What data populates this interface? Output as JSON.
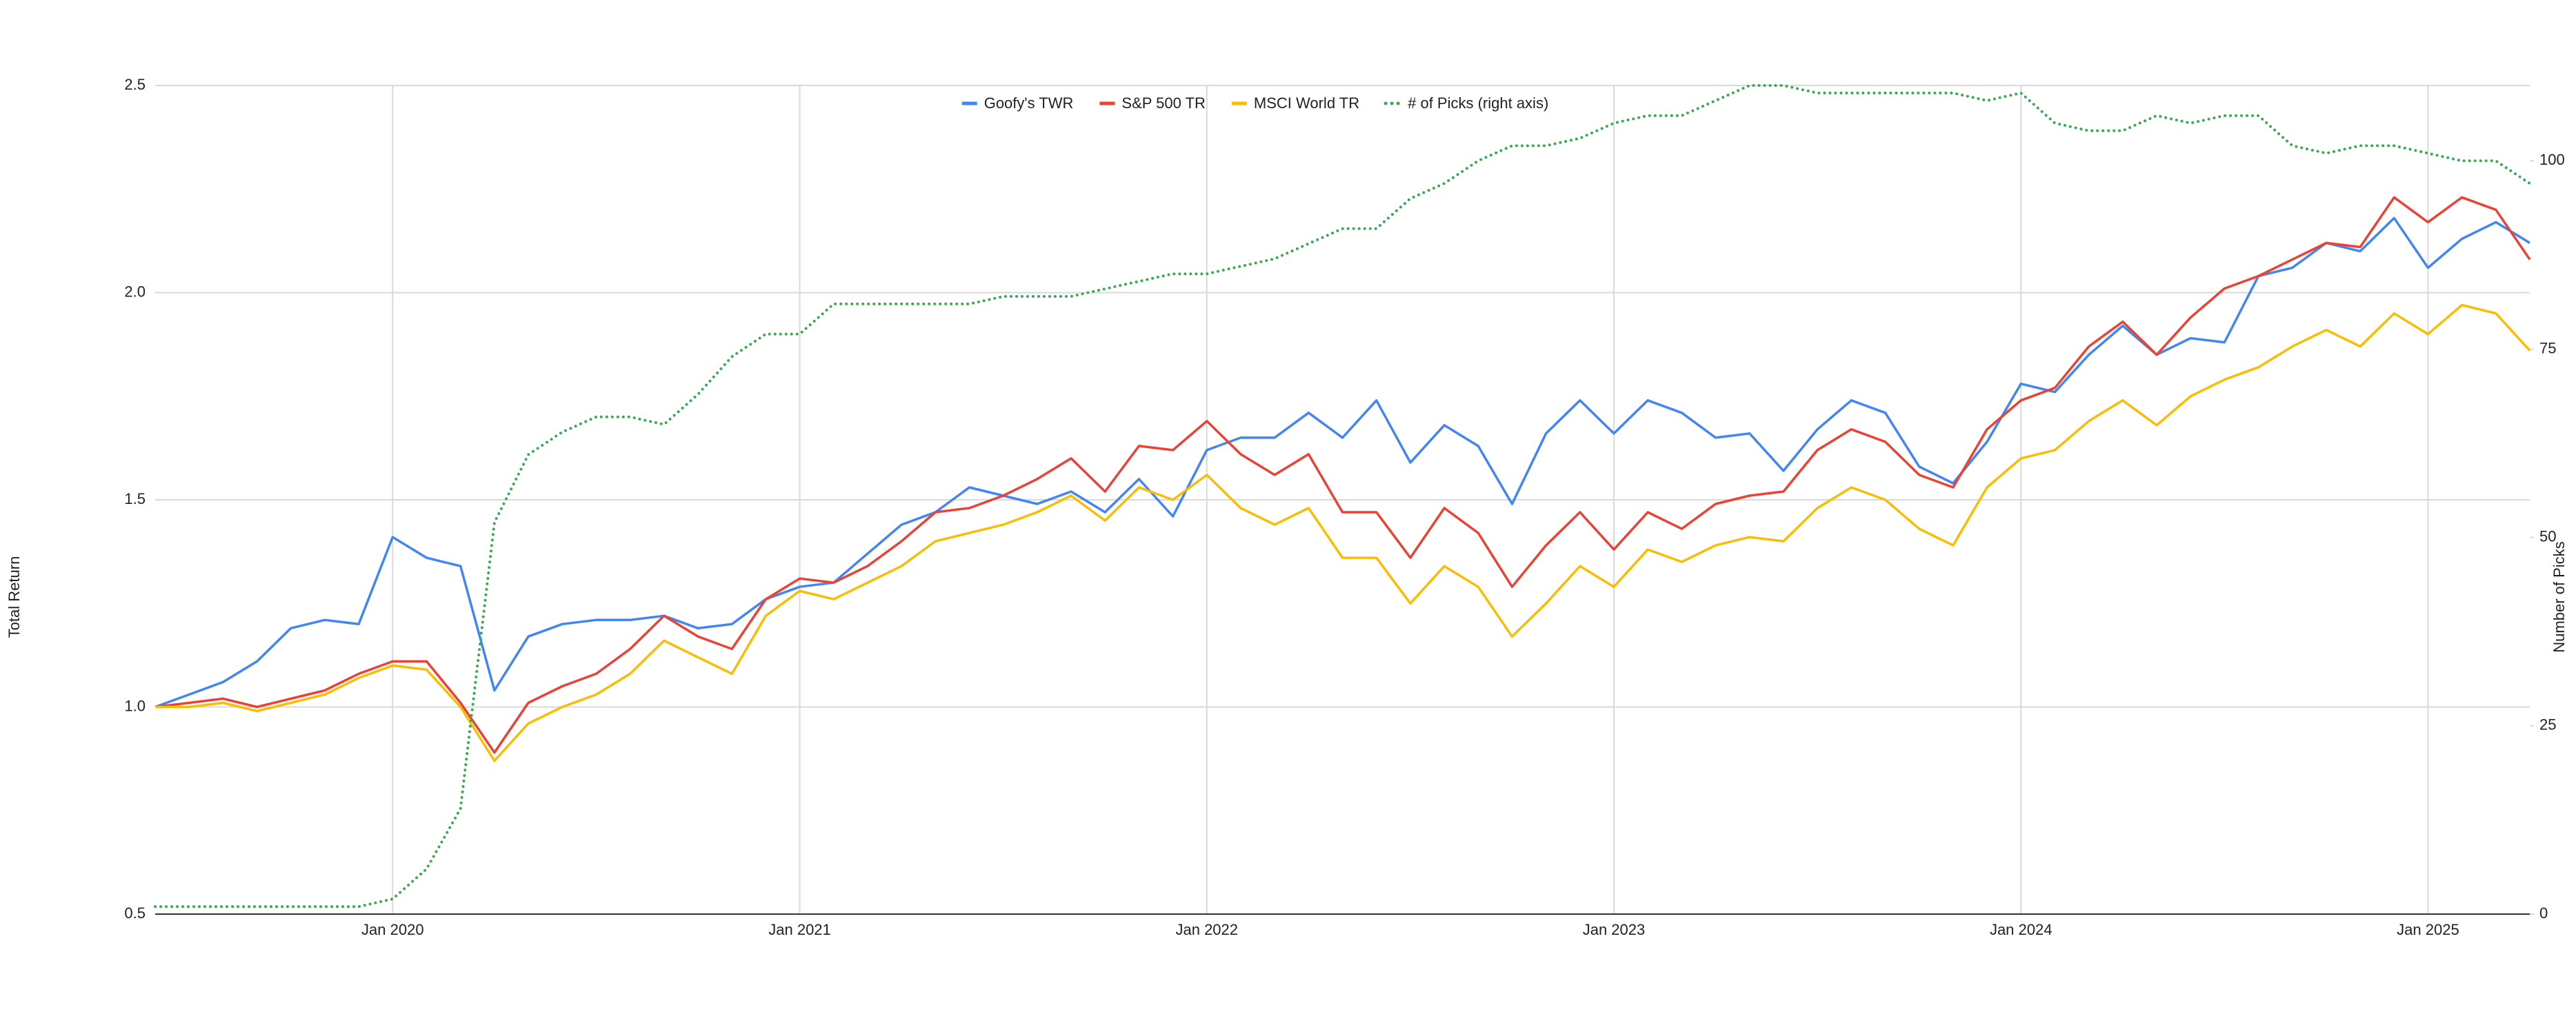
{
  "chart_data": {
    "type": "line",
    "y_label": "Total Return",
    "y2_label": "Number of Picks",
    "legend": "top",
    "grid": true,
    "x": [
      "2019-06",
      "2019-07",
      "2019-08",
      "2019-09",
      "2019-10",
      "2019-11",
      "2019-12",
      "2020-01",
      "2020-02",
      "2020-03",
      "2020-04",
      "2020-05",
      "2020-06",
      "2020-07",
      "2020-08",
      "2020-09",
      "2020-10",
      "2020-11",
      "2020-12",
      "2021-01",
      "2021-02",
      "2021-03",
      "2021-04",
      "2021-05",
      "2021-06",
      "2021-07",
      "2021-08",
      "2021-09",
      "2021-10",
      "2021-11",
      "2021-12",
      "2022-01",
      "2022-02",
      "2022-03",
      "2022-04",
      "2022-05",
      "2022-06",
      "2022-07",
      "2022-08",
      "2022-09",
      "2022-10",
      "2022-11",
      "2022-12",
      "2023-01",
      "2023-02",
      "2023-03",
      "2023-04",
      "2023-05",
      "2023-06",
      "2023-07",
      "2023-08",
      "2023-09",
      "2023-10",
      "2023-11",
      "2023-12",
      "2024-01",
      "2024-02",
      "2024-03",
      "2024-04",
      "2024-05",
      "2024-06",
      "2024-07",
      "2024-08",
      "2024-09",
      "2024-10",
      "2024-11",
      "2024-12",
      "2025-01",
      "2025-02",
      "2025-03",
      "2025-04"
    ],
    "xlim": [
      "2019-06",
      "2025-04"
    ],
    "xticks": [
      {
        "value": "2020-01",
        "label": "Jan 2020"
      },
      {
        "value": "2021-01",
        "label": "Jan 2021"
      },
      {
        "value": "2022-01",
        "label": "Jan 2022"
      },
      {
        "value": "2023-01",
        "label": "Jan 2023"
      },
      {
        "value": "2024-01",
        "label": "Jan 2024"
      },
      {
        "value": "2025-01",
        "label": "Jan 2025"
      }
    ],
    "ylim": [
      0.5,
      2.5
    ],
    "yticks": [
      0.5,
      {
        "value": 1,
        "label": "1.0"
      },
      1.5,
      {
        "value": 2,
        "label": "2.0"
      },
      2.5
    ],
    "y2lim": [
      0,
      110
    ],
    "y2ticks": [
      0,
      25,
      50,
      75,
      100
    ],
    "series": [
      {
        "name": "Goofy's TWR",
        "color": "#4285f4",
        "values": [
          1.0,
          1.03,
          1.06,
          1.11,
          1.19,
          1.21,
          1.2,
          1.41,
          1.36,
          1.34,
          1.04,
          1.17,
          1.2,
          1.21,
          1.21,
          1.22,
          1.19,
          1.2,
          1.26,
          1.29,
          1.3,
          1.37,
          1.44,
          1.47,
          1.53,
          1.51,
          1.49,
          1.52,
          1.47,
          1.55,
          1.46,
          1.62,
          1.65,
          1.65,
          1.71,
          1.65,
          1.74,
          1.59,
          1.68,
          1.63,
          1.49,
          1.66,
          1.74,
          1.66,
          1.74,
          1.71,
          1.65,
          1.66,
          1.57,
          1.67,
          1.74,
          1.71,
          1.58,
          1.54,
          1.64,
          1.78,
          1.76,
          1.85,
          1.92,
          1.85,
          1.89,
          1.88,
          2.04,
          2.06,
          2.12,
          2.1,
          2.18,
          2.06,
          2.13,
          2.17,
          2.12
        ]
      },
      {
        "name": "S&P 500 TR",
        "color": "#ea4335",
        "values": [
          1.0,
          1.01,
          1.02,
          1.0,
          1.02,
          1.04,
          1.08,
          1.11,
          1.11,
          1.01,
          0.89,
          1.01,
          1.05,
          1.08,
          1.14,
          1.22,
          1.17,
          1.14,
          1.26,
          1.31,
          1.3,
          1.34,
          1.4,
          1.47,
          1.48,
          1.51,
          1.55,
          1.6,
          1.52,
          1.63,
          1.62,
          1.69,
          1.61,
          1.56,
          1.61,
          1.47,
          1.47,
          1.36,
          1.48,
          1.42,
          1.29,
          1.39,
          1.47,
          1.38,
          1.47,
          1.43,
          1.49,
          1.51,
          1.52,
          1.62,
          1.67,
          1.64,
          1.56,
          1.53,
          1.67,
          1.74,
          1.77,
          1.87,
          1.93,
          1.85,
          1.94,
          2.01,
          2.04,
          2.08,
          2.12,
          2.11,
          2.23,
          2.17,
          2.23,
          2.2,
          2.08
        ]
      },
      {
        "name": "MSCI World TR",
        "color": "#fbbc04",
        "values": [
          1.0,
          1.0,
          1.01,
          0.99,
          1.01,
          1.03,
          1.07,
          1.1,
          1.09,
          1.0,
          0.87,
          0.96,
          1.0,
          1.03,
          1.08,
          1.16,
          1.12,
          1.08,
          1.22,
          1.28,
          1.26,
          1.3,
          1.34,
          1.4,
          1.42,
          1.44,
          1.47,
          1.51,
          1.45,
          1.53,
          1.5,
          1.56,
          1.48,
          1.44,
          1.48,
          1.36,
          1.36,
          1.25,
          1.34,
          1.29,
          1.17,
          1.25,
          1.34,
          1.29,
          1.38,
          1.35,
          1.39,
          1.41,
          1.4,
          1.48,
          1.53,
          1.5,
          1.43,
          1.39,
          1.53,
          1.6,
          1.62,
          1.69,
          1.74,
          1.68,
          1.75,
          1.79,
          1.82,
          1.87,
          1.91,
          1.87,
          1.95,
          1.9,
          1.97,
          1.95,
          1.86
        ]
      },
      {
        "name": "# of Picks (right axis)",
        "color": "#34a853",
        "axis": "y2",
        "dash": "dotted",
        "values": [
          1,
          1,
          1,
          1,
          1,
          1,
          1,
          2,
          6,
          14,
          52,
          61,
          64,
          66,
          66,
          65,
          69,
          74,
          77,
          77,
          81,
          81,
          81,
          81,
          81,
          82,
          82,
          82,
          83,
          84,
          85,
          85,
          86,
          87,
          89,
          91,
          91,
          95,
          97,
          100,
          102,
          102,
          103,
          105,
          106,
          106,
          108,
          110,
          110,
          109,
          109,
          109,
          109,
          109,
          108,
          109,
          105,
          104,
          104,
          106,
          105,
          106,
          106,
          102,
          101,
          102,
          102,
          101,
          100,
          100,
          97
        ]
      }
    ]
  }
}
